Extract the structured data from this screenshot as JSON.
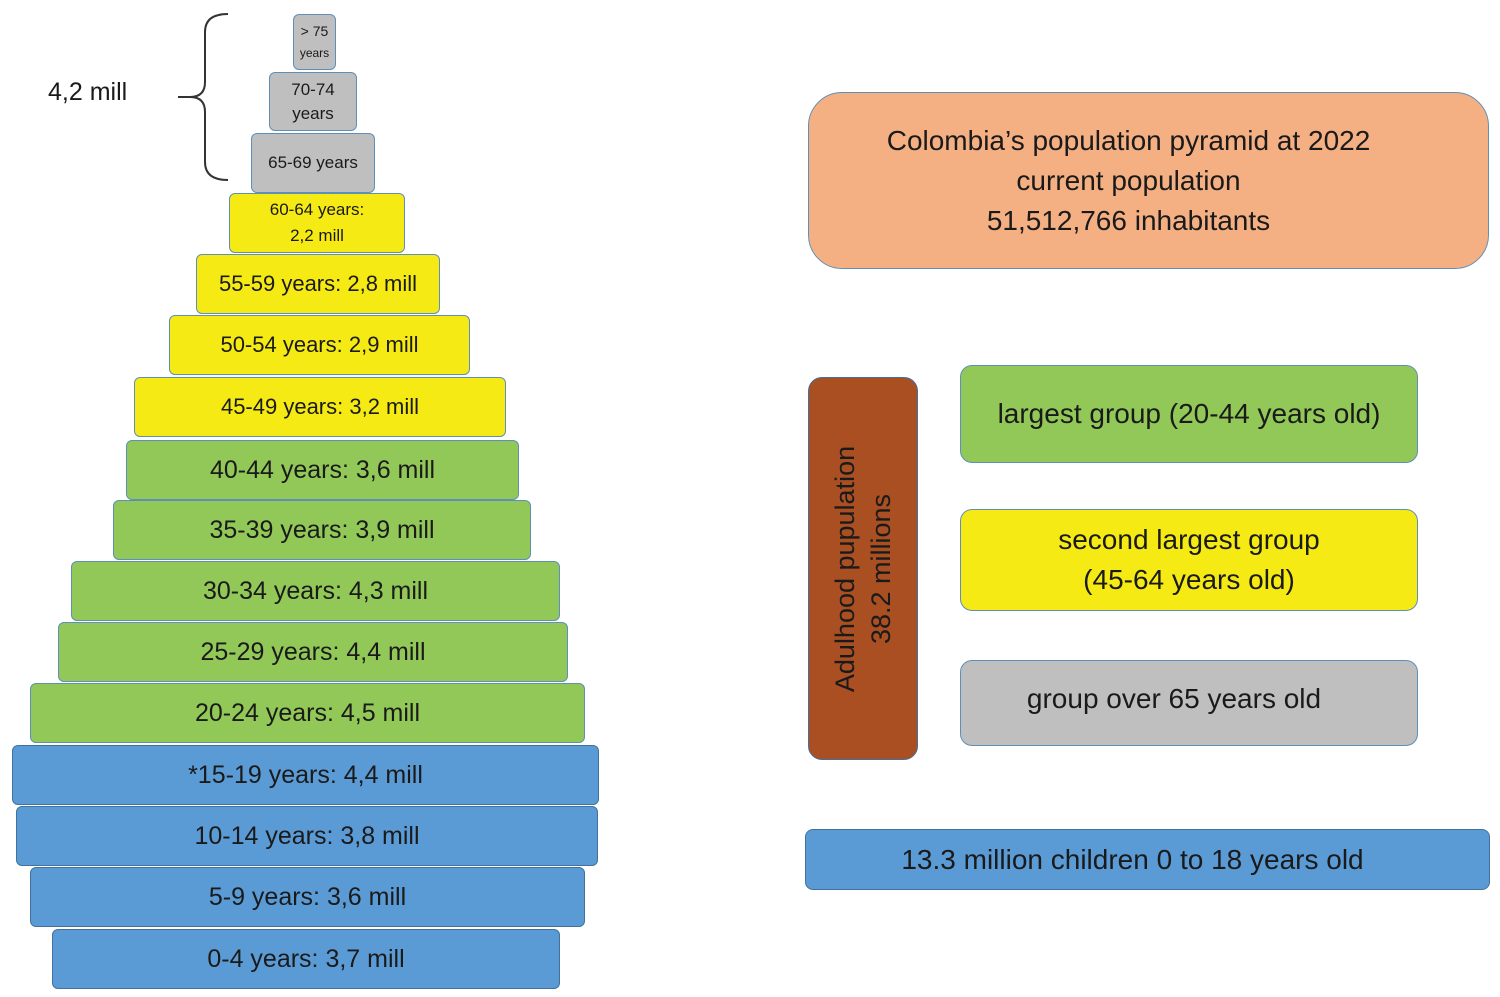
{
  "pyramid": {
    "over75": {
      "line1": "> 75",
      "line2": "years"
    },
    "age70_74": {
      "line1": "70-74",
      "line2": "years"
    },
    "age65_69": "65-69 years",
    "age60_64": {
      "line1": "60-64 years:",
      "line2": "2,2 mill"
    },
    "age55_59": "55-59 years: 2,8 mill",
    "age50_54": "50-54 years: 2,9 mill",
    "age45_49": "45-49 years: 3,2 mill",
    "age40_44": "40-44 years: 3,6 mill",
    "age35_39": "35-39 years: 3,9 mill",
    "age30_34": "30-34 years: 4,3 mill",
    "age25_29": "25-29 years: 4,4 mill",
    "age20_24": "20-24 years: 4,5 mill",
    "age15_19": "*15-19 years: 4,4 mill",
    "age10_14": "10-14 years: 3,8 mill",
    "age5_9": "5-9 years: 3,6 mill",
    "age0_4": "0-4 years: 3,7 mill"
  },
  "elderly_total": "4,2 mill",
  "title": {
    "line1": "Colombia’s population pyramid at 2022",
    "line2": "current population",
    "line3": "51,512,766 inhabitants"
  },
  "adult": {
    "line1": "Adulhood pupulation",
    "line2": "38.2 millions"
  },
  "legend": {
    "largest": "largest group (20-44 years old)",
    "second_line1": "second largest group",
    "second_line2": "(45-64 years old)",
    "over65": "group over 65 years old"
  },
  "children": "13.3 million children 0 to 18 years old",
  "colors": {
    "children": "#5b9bd5",
    "adult_large": "#92c857",
    "adult_second": "#f5ea14",
    "elderly": "#bfbfbf",
    "title": "#f4b083",
    "adulthood": "#a94f22"
  }
}
